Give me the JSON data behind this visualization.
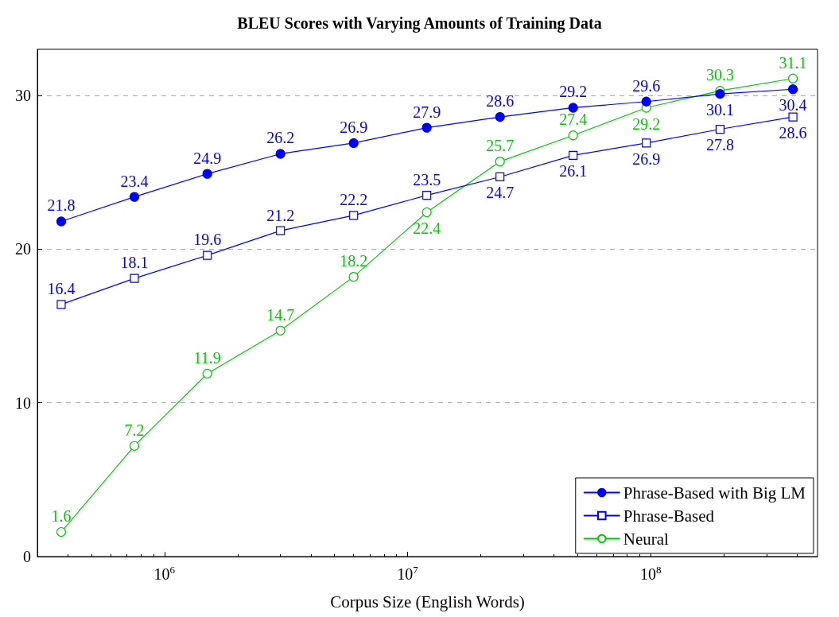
{
  "chart_data": {
    "type": "line",
    "title": "BLEU Scores with Varying Amounts of Training Data",
    "xlabel": "Corpus Size (English Words)",
    "x": [
      376000,
      752000,
      1500000,
      3000000,
      6000000,
      12000000,
      24000000,
      48000000,
      96000000,
      193000000,
      385000000
    ],
    "series": [
      {
        "name": "Phrase-Based with Big LM",
        "color": "#0000ff",
        "marker": "circle",
        "values": [
          21.8,
          23.4,
          24.9,
          26.2,
          26.9,
          27.9,
          28.6,
          29.2,
          29.6,
          30.1,
          30.4
        ]
      },
      {
        "name": "Phrase-Based",
        "color": "#0000ff",
        "marker": "square",
        "values": [
          16.4,
          18.1,
          19.6,
          21.2,
          22.2,
          23.5,
          24.7,
          26.1,
          26.9,
          27.8,
          28.6
        ]
      },
      {
        "name": "Neural",
        "color": "#00cc00",
        "marker": "circle",
        "values": [
          1.6,
          7.2,
          11.9,
          14.7,
          18.2,
          22.4,
          25.7,
          27.4,
          29.2,
          30.3,
          31.1
        ]
      }
    ],
    "log": "x",
    "xlim": [
      300000,
      486000000
    ],
    "xticks": [
      {
        "value": 1000000,
        "label": "10$^{6}$"
      },
      {
        "value": 10000000,
        "label": "10$^{7}$"
      },
      {
        "value": 100000000,
        "label": "10$^{8}$"
      }
    ],
    "ylim": [
      0,
      33
    ],
    "yticks": [
      0,
      10,
      20,
      30
    ],
    "grid": "y",
    "legend": "bottom right",
    "data_labels": true,
    "line_style": "solid"
  }
}
